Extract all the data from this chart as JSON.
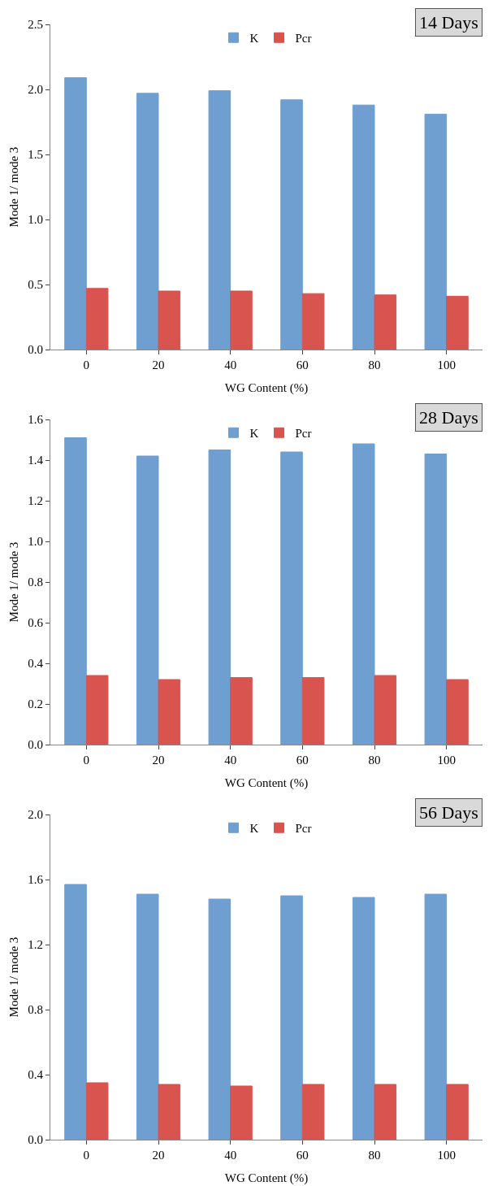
{
  "chart_data": [
    {
      "type": "bar",
      "categories": [
        "0",
        "20",
        "40",
        "60",
        "80",
        "100"
      ],
      "xlabel": "WG Content (%)",
      "ylabel": "Mode 1/ mode 3",
      "ylim": [
        0,
        2.5
      ],
      "yticks": [
        {
          "value": 0,
          "label": "0.0"
        },
        {
          "value": 0.5,
          "label": "0.5"
        },
        {
          "value": 1,
          "label": "1.0"
        },
        {
          "value": 1.5,
          "label": "1.5"
        },
        {
          "value": 2,
          "label": "2.0"
        },
        {
          "value": 2.5,
          "label": "2.5"
        }
      ],
      "grid": false,
      "legend": "top",
      "annotations": [
        "14 Days"
      ],
      "series": [
        {
          "name": "K",
          "color": "#6f9fd0",
          "values": [
            2.09,
            1.97,
            1.99,
            1.92,
            1.88,
            1.81
          ]
        },
        {
          "name": "Pcr",
          "color": "#d9534f",
          "values": [
            0.47,
            0.45,
            0.45,
            0.43,
            0.42,
            0.41
          ]
        }
      ]
    },
    {
      "type": "bar",
      "categories": [
        "0",
        "20",
        "40",
        "60",
        "80",
        "100"
      ],
      "xlabel": "WG Content (%)",
      "ylabel": "Mode 1/ mode 3",
      "ylim": [
        0,
        1.6
      ],
      "yticks": [
        {
          "value": 0,
          "label": "0.0"
        },
        {
          "value": 0.2,
          "label": "0.2"
        },
        {
          "value": 0.4,
          "label": "0.4"
        },
        {
          "value": 0.6,
          "label": "0.6"
        },
        {
          "value": 0.8,
          "label": "0.8"
        },
        {
          "value": 1,
          "label": "1.0"
        },
        {
          "value": 1.2,
          "label": "1.2"
        },
        {
          "value": 1.4,
          "label": "1.4"
        },
        {
          "value": 1.6,
          "label": "1.6"
        }
      ],
      "grid": false,
      "legend": "top",
      "annotations": [
        "28 Days"
      ],
      "series": [
        {
          "name": "K",
          "color": "#6f9fd0",
          "values": [
            1.51,
            1.42,
            1.45,
            1.44,
            1.48,
            1.43
          ]
        },
        {
          "name": "Pcr",
          "color": "#d9534f",
          "values": [
            0.34,
            0.32,
            0.33,
            0.33,
            0.34,
            0.32
          ]
        }
      ]
    },
    {
      "type": "bar",
      "categories": [
        "0",
        "20",
        "40",
        "60",
        "80",
        "100"
      ],
      "xlabel": "WG Content (%)",
      "ylabel": "Mode 1/ mode 3",
      "ylim": [
        0,
        2
      ],
      "yticks": [
        {
          "value": 0,
          "label": "0.0"
        },
        {
          "value": 0.4,
          "label": "0.4"
        },
        {
          "value": 0.8,
          "label": "0.8"
        },
        {
          "value": 1.2,
          "label": "1.2"
        },
        {
          "value": 1.6,
          "label": "1.6"
        },
        {
          "value": 2,
          "label": "2.0"
        }
      ],
      "grid": false,
      "legend": "top",
      "annotations": [
        "56 Days"
      ],
      "series": [
        {
          "name": "K",
          "color": "#6f9fd0",
          "values": [
            1.57,
            1.51,
            1.48,
            1.5,
            1.49,
            1.51
          ]
        },
        {
          "name": "Pcr",
          "color": "#d9534f",
          "values": [
            0.35,
            0.34,
            0.33,
            0.34,
            0.34,
            0.34
          ]
        }
      ]
    }
  ]
}
